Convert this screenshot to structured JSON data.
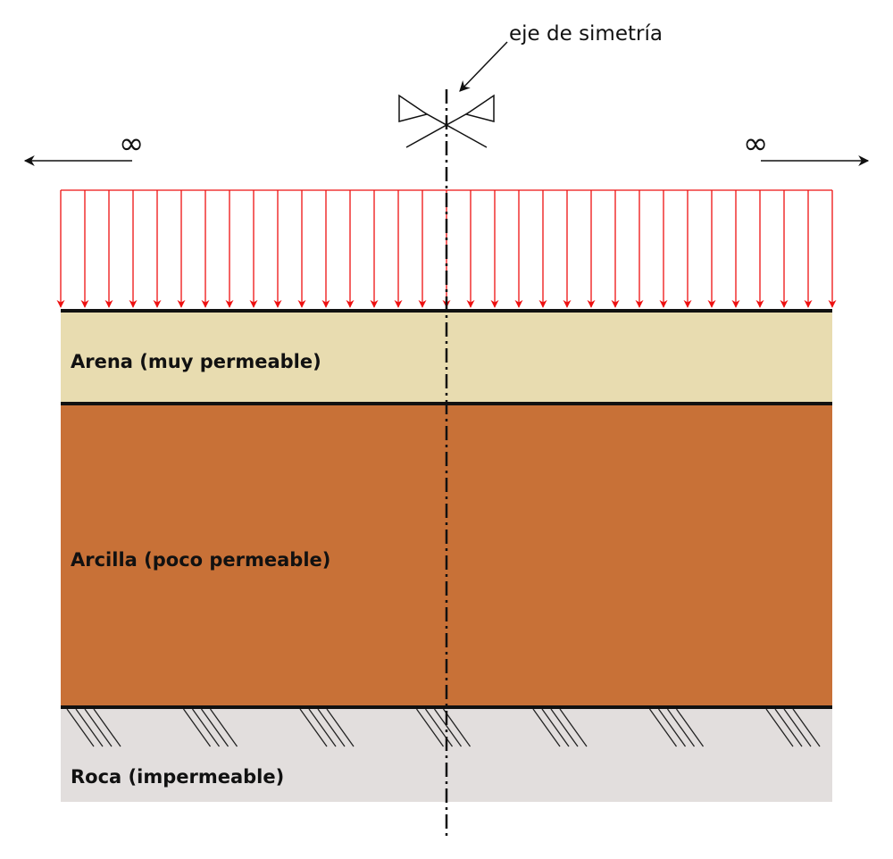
{
  "diagram": {
    "symmetry_label": "eje de simetría",
    "infinity_left": "∞",
    "infinity_right": "∞",
    "load": {
      "arrow_count": 33,
      "color": "#ee1111"
    },
    "layers": [
      {
        "name": "Arena (muy permeable)",
        "color": "#e8dcb0"
      },
      {
        "name": "Arcilla (poco permeable)",
        "color": "#c87137"
      },
      {
        "name": "Roca (impermeable)",
        "color": "#e2dedd"
      }
    ],
    "hatch_groups": 7
  }
}
